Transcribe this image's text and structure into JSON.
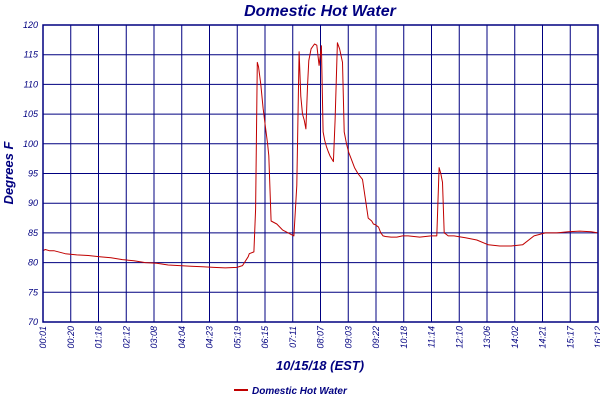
{
  "chart_data": {
    "type": "line",
    "title": "Domestic Hot Water",
    "xlabel": "10/15/18 (EST)",
    "ylabel": "Degrees F",
    "ylim": [
      70,
      120
    ],
    "yticks": [
      70,
      75,
      80,
      85,
      90,
      95,
      100,
      105,
      110,
      115,
      120
    ],
    "xlim_minutes": [
      1,
      972
    ],
    "xticks": [
      "00:01",
      "00:20",
      "01:16",
      "02:12",
      "03:08",
      "04:04",
      "04:23",
      "05:19",
      "06:15",
      "07:11",
      "08:07",
      "09:03",
      "09:22",
      "10:18",
      "11:14",
      "12:10",
      "13:06",
      "14:02",
      "14:21",
      "15:17",
      "16:12"
    ],
    "grid": true,
    "legend_position": "bottom-left",
    "colors": {
      "text": "#000080",
      "grid": "#000080",
      "series": "#c00000"
    },
    "series": [
      {
        "name": "Domestic Hot Water",
        "x": [
          1,
          5,
          12,
          20,
          40,
          60,
          80,
          100,
          120,
          140,
          160,
          180,
          200,
          220,
          240,
          260,
          280,
          300,
          320,
          340,
          350,
          360,
          362,
          370,
          373,
          376,
          378,
          382,
          386,
          390,
          394,
          396,
          400,
          410,
          420,
          430,
          440,
          445,
          449,
          452,
          455,
          458,
          461,
          464,
          466,
          470,
          476,
          480,
          484,
          488,
          491,
          494,
          497,
          500,
          503,
          506,
          509,
          512,
          516,
          520,
          525,
          528,
          532,
          536,
          540,
          546,
          552,
          560,
          570,
          576,
          579,
          582,
          585,
          588,
          592,
          596,
          600,
          610,
          620,
          630,
          640,
          650,
          660,
          670,
          680,
          690,
          694,
          697,
          700,
          703,
          706,
          710,
          720,
          740,
          760,
          780,
          790,
          800,
          820,
          840,
          860,
          880,
          900,
          920,
          940,
          960,
          972
        ],
        "values": [
          82,
          82.2,
          82,
          82,
          81.5,
          81.3,
          81.2,
          81,
          80.8,
          80.5,
          80.3,
          80,
          79.9,
          79.6,
          79.5,
          79.4,
          79.3,
          79.2,
          79.1,
          79.2,
          79.5,
          81,
          81.5,
          81.8,
          89,
          113.7,
          113,
          110,
          106,
          103,
          100,
          98,
          87,
          86.5,
          85.5,
          85,
          84.5,
          93,
          115.5,
          108,
          105,
          104,
          102.5,
          110,
          114,
          116,
          116.8,
          116.6,
          113.2,
          116.5,
          102,
          100.5,
          99.5,
          98.7,
          98,
          97.5,
          97,
          104,
          117,
          116,
          113.7,
          102,
          100,
          98.5,
          97.5,
          96,
          95,
          94,
          87.5,
          87,
          86.5,
          86.4,
          86.2,
          86,
          85,
          84.5,
          84.4,
          84.3,
          84.3,
          84.5,
          84.5,
          84.4,
          84.3,
          84.4,
          84.5,
          84.5,
          96,
          95,
          93.5,
          85,
          84.8,
          84.5,
          84.5,
          84.2,
          83.8,
          83,
          82.9,
          82.8,
          82.8,
          83,
          84.5,
          85,
          85,
          85.2,
          85.3,
          85.2,
          85
        ]
      }
    ]
  }
}
